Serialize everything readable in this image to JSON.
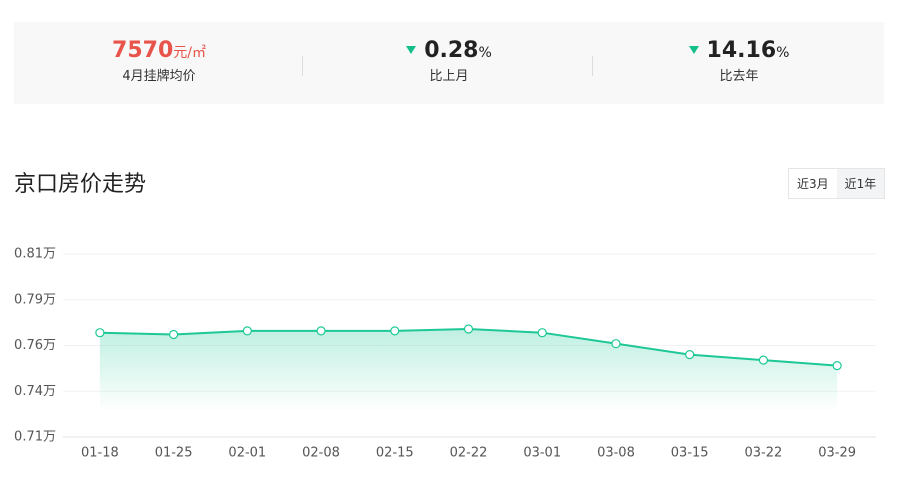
{
  "stats": [
    {
      "value": "7570",
      "unit": "元/㎡",
      "label": "4月挂牌均价"
    },
    {
      "value": "0.28",
      "unit": "%",
      "label": "比上月"
    },
    {
      "value": "14.16",
      "unit": "%",
      "label": "比去年"
    }
  ],
  "section_title": "京口房价走势",
  "buttons": [
    "近3月",
    "近1年"
  ],
  "chart_data": {
    "type": "line",
    "categories": [
      "01-18",
      "01-25",
      "02-01",
      "02-08",
      "02-15",
      "02-22",
      "03-01",
      "03-08",
      "03-15",
      "03-22",
      "03-29"
    ],
    "values": [
      0.767,
      0.766,
      0.768,
      0.768,
      0.768,
      0.769,
      0.767,
      0.761,
      0.755,
      0.752,
      0.749
    ],
    "color": "#1dc896",
    "ylim": [
      0.71,
      0.81
    ],
    "yticks": [
      {
        "value": 0.71,
        "label": "0.71万"
      },
      {
        "value": 0.735,
        "label": "0.74万"
      },
      {
        "value": 0.76,
        "label": "0.76万"
      },
      {
        "value": 0.785,
        "label": "0.79万"
      },
      {
        "value": 0.81,
        "label": "0.81万"
      }
    ],
    "grid": true
  }
}
